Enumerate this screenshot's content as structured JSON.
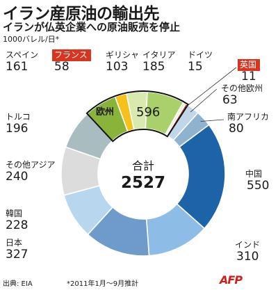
{
  "header": {
    "title": "イラン産原油の輸出先",
    "subtitle": "イランが仏英企業への原油販売を停止",
    "unit": "1000バレル/日*"
  },
  "footer": {
    "source": "出典: EIA",
    "note": "*2011年1月～9月推計",
    "logo": "AFP"
  },
  "colors": {
    "eu_bg": "#c5de8f",
    "eu_outline": "#111111",
    "highlight_red": "#d9341f"
  },
  "chart_data": {
    "type": "pie",
    "title": "イラン産原油の輸出先",
    "unit": "1000バレル/日*",
    "center_label": "合計",
    "total": 2527,
    "group": {
      "name": "欧州",
      "value": 596,
      "members": [
        "スペイン",
        "フランス",
        "ギリシャ",
        "イタリア",
        "ドイツ",
        "英国"
      ]
    },
    "slices": [
      {
        "name": "スペイン",
        "value": 161,
        "color": "#8ab33a",
        "group": "EU"
      },
      {
        "name": "フランス",
        "value": 58,
        "color": "#f4c21b",
        "group": "EU",
        "highlight": true
      },
      {
        "name": "ギリシャ",
        "value": 103,
        "color": "#d9eaae",
        "group": "EU"
      },
      {
        "name": "イタリア",
        "value": 185,
        "color": "#a9d06a",
        "group": "EU"
      },
      {
        "name": "ドイツ",
        "value": 15,
        "color": "#eef6d7",
        "group": "EU"
      },
      {
        "name": "英国",
        "value": 11,
        "color": "#d9341f",
        "group": "EU",
        "highlight": true
      },
      {
        "name": "その他欧州",
        "value": 63,
        "color": "#bfd7e8"
      },
      {
        "name": "南アフリカ",
        "value": 80,
        "color": "#8fb3cf"
      },
      {
        "name": "中国",
        "value": 550,
        "color": "#1d63a8"
      },
      {
        "name": "インド",
        "value": 310,
        "color": "#8dbde6"
      },
      {
        "name": "日本",
        "value": 327,
        "color": "#6e9bc9"
      },
      {
        "name": "韓国",
        "value": 228,
        "color": "#b8d7ef"
      },
      {
        "name": "その他アジア",
        "value": 240,
        "color": "#dcdcdc"
      },
      {
        "name": "トルコ",
        "value": 196,
        "color": "#a9bcbf"
      }
    ]
  }
}
